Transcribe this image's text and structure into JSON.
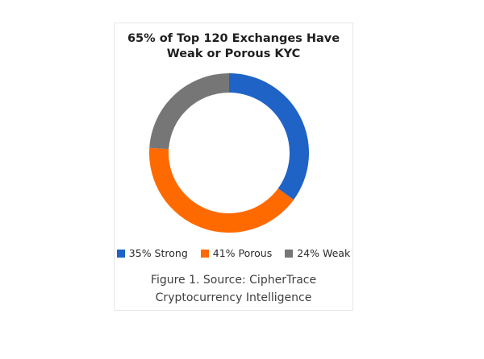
{
  "figure": {
    "caption_line1": "Figure 1. Source: CipherTrace",
    "caption_line2": "Cryptocurrency Intelligence"
  },
  "chart_data": {
    "type": "pie",
    "title": "65% of Top 120 Exchanges Have Weak or Porous KYC",
    "title_line1": "65% of Top 120 Exchanges Have",
    "title_line2": "Weak or Porous KYC",
    "donut": true,
    "labels": [
      "35% Strong",
      "41% Porous",
      "24% Weak"
    ],
    "values": [
      35,
      41,
      24
    ],
    "colors": [
      "#1f63c6",
      "#ff6a00",
      "#767676"
    ],
    "legend_position": "bottom"
  }
}
